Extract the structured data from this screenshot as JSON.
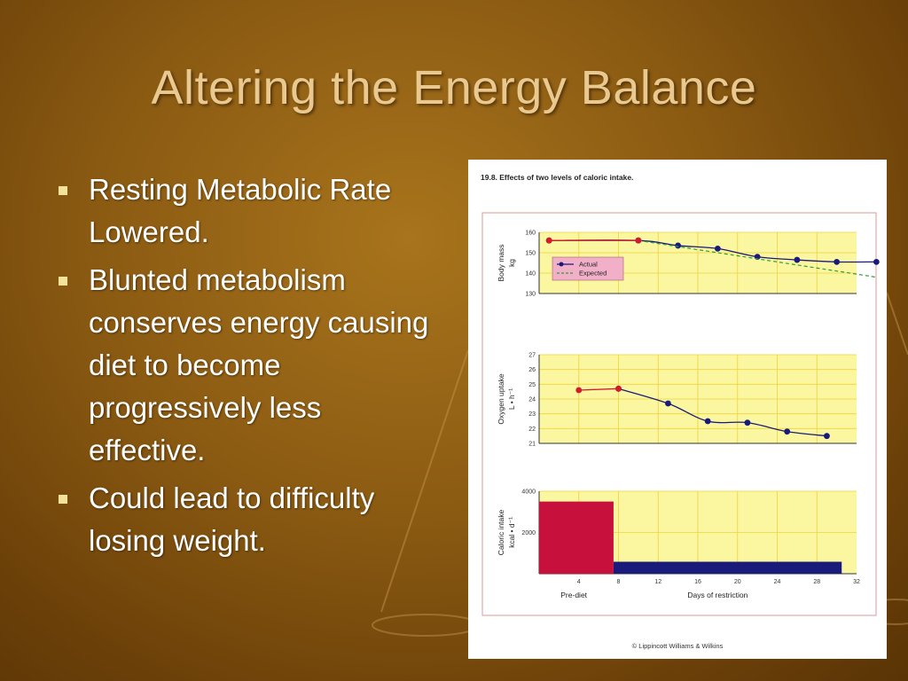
{
  "slide": {
    "title": "Altering the Energy Balance",
    "bullets": [
      "Resting Metabolic Rate Lowered.",
      "Blunted metabolism conserves energy causing diet to become progressively less effective.",
      "Could lead to difficulty losing weight."
    ]
  },
  "figure": {
    "caption": "19.8. Effects of two levels of caloric intake.",
    "credit": "© Lippincott Williams & Wilkins",
    "panel_bg": "#fbf6a0",
    "grid_color": "#f0d23c"
  },
  "chart_data": [
    {
      "type": "line",
      "ylabel": "Body mass",
      "yunit": "kg",
      "ylim": [
        130,
        160
      ],
      "yticks": [
        130,
        140,
        150,
        160
      ],
      "xlim": [
        0,
        32
      ],
      "legend": {
        "placement": "bottom-left",
        "entries": [
          "Actual",
          "Expected"
        ]
      },
      "series": [
        {
          "name": "Actual",
          "color": "#1a1a7a",
          "x": [
            1,
            10,
            14,
            18,
            22,
            26,
            30,
            34
          ],
          "y": [
            156,
            156,
            153.5,
            152,
            148,
            146.5,
            145.5,
            145.5
          ]
        },
        {
          "name": "Expected",
          "color": "#2f9e3a",
          "dashed": true,
          "x": [
            10,
            34
          ],
          "y": [
            156,
            138
          ]
        }
      ],
      "pre_diet_points": {
        "color": "#d11a2a",
        "x": [
          1,
          10
        ],
        "y": [
          156,
          156
        ]
      }
    },
    {
      "type": "line",
      "ylabel": "Oxygen uptake",
      "yunit": "L • h⁻¹",
      "ylim": [
        21,
        27
      ],
      "yticks": [
        21,
        22,
        23,
        24,
        25,
        26,
        27
      ],
      "xlim": [
        0,
        32
      ],
      "series": [
        {
          "name": "Oxygen uptake",
          "color": "#1a1a7a",
          "x": [
            8,
            13,
            17,
            21,
            25,
            29
          ],
          "y": [
            24.7,
            23.7,
            22.5,
            22.4,
            21.8,
            21.5
          ]
        }
      ],
      "pre_diet_points": {
        "color": "#d11a2a",
        "x": [
          4,
          8
        ],
        "y": [
          24.6,
          24.7
        ]
      }
    },
    {
      "type": "bar",
      "ylabel": "Caloric intake",
      "yunit": "kcal • d⁻¹",
      "ylim": [
        0,
        4000
      ],
      "yticks": [
        2000,
        4000
      ],
      "xlim": [
        0,
        32
      ],
      "xticks": [
        4,
        8,
        12,
        16,
        20,
        24,
        28,
        32
      ],
      "xlabel_left": "Pre-diet",
      "xlabel": "Days of restriction",
      "bars": [
        {
          "x0": 0,
          "x1": 7.5,
          "value": 3500,
          "color": "#c8103c"
        },
        {
          "x0": 7.5,
          "x1": 30.5,
          "value": 580,
          "color": "#1a1a7a"
        }
      ]
    }
  ]
}
